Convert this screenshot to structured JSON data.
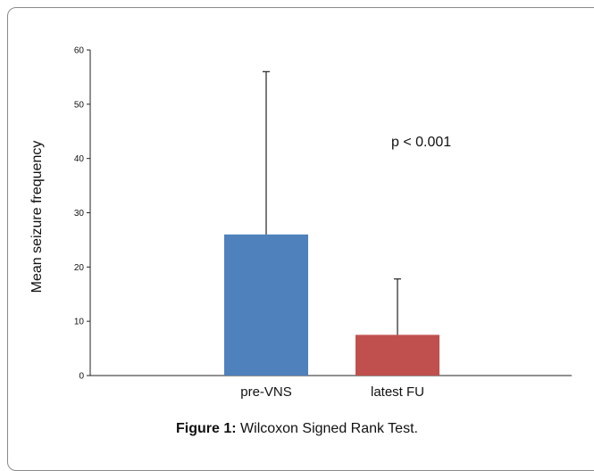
{
  "chart_data": {
    "type": "bar",
    "categories": [
      "pre-VNS",
      "latest FU"
    ],
    "values": [
      26,
      7.5
    ],
    "error_upper": [
      56,
      17.8
    ],
    "colors": [
      "#4f81bd",
      "#c0504d"
    ],
    "xlabel": "",
    "ylabel": "Mean seizure frequency",
    "ylim": [
      0,
      60
    ],
    "yticks": [
      0,
      10,
      20,
      30,
      40,
      50,
      60
    ],
    "grid": false,
    "legend": "none",
    "annotation": "p < 0.001"
  },
  "caption": {
    "prefix": "Figure 1:",
    "text": " Wilcoxon Signed Rank Test."
  }
}
